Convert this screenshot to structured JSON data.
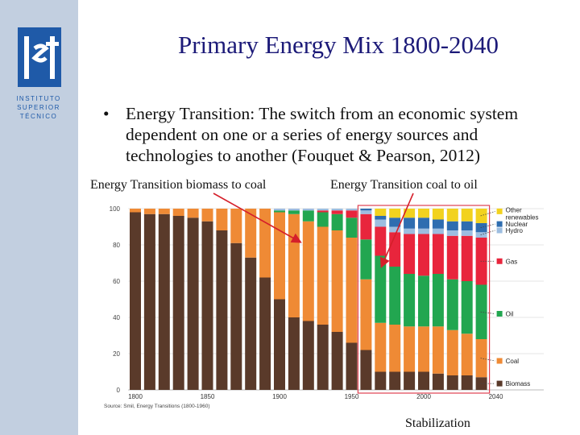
{
  "slide": {
    "title": "Primary Energy Mix 1800-2040",
    "bullet_symbol": "•",
    "bullet_text": "Energy Transition: The switch from an economic system dependent on one or a series of energy sources and technologies to another (Fouquet & Pearson, 2012)",
    "annotation_left": "Energy Transition biomass to coal",
    "annotation_right": "Energy Transition coal to oil",
    "annotation_bottom": "Stabilization"
  },
  "logo": {
    "lines": [
      "INSTITUTO",
      "SUPERIOR",
      "TÉCNICO"
    ],
    "mark_text": "ist"
  },
  "colors": {
    "sidebar": "#c2cfe0",
    "logo_blue": "#1f5aa8",
    "title": "#1c1a78",
    "arrow": "#d51f2a",
    "highlight_box": "#e04050"
  },
  "chart_data": {
    "type": "bar",
    "stacked": true,
    "source": "Source: Smil, Energy Transitions (1800-1960)",
    "ylim": [
      0,
      100
    ],
    "yticks": [
      0,
      20,
      40,
      60,
      80,
      100
    ],
    "xtick_labels": [
      "1800",
      "1850",
      "1900",
      "1950",
      "2000",
      "2040"
    ],
    "categories": [
      1800,
      1810,
      1820,
      1830,
      1840,
      1850,
      1860,
      1870,
      1880,
      1890,
      1900,
      1910,
      1920,
      1930,
      1940,
      1950,
      1960,
      1970,
      1980,
      1990,
      2000,
      2010,
      2020,
      2030,
      2040
    ],
    "series": [
      {
        "name": "Biomass",
        "color": "#5a3a2a",
        "values": [
          98,
          97,
          97,
          96,
          95,
          93,
          88,
          81,
          73,
          62,
          50,
          40,
          38,
          36,
          32,
          26,
          22,
          10,
          10,
          10,
          10,
          9,
          8,
          8,
          7
        ]
      },
      {
        "name": "Coal",
        "color": "#ef8a35",
        "values": [
          2,
          3,
          3,
          4,
          5,
          7,
          12,
          19,
          27,
          38,
          48,
          57,
          55,
          54,
          56,
          58,
          39,
          27,
          26,
          25,
          25,
          26,
          25,
          23,
          21
        ]
      },
      {
        "name": "Oil",
        "color": "#22a650",
        "values": [
          0,
          0,
          0,
          0,
          0,
          0,
          0,
          0,
          0,
          0,
          1,
          2,
          6,
          8,
          9,
          11,
          22,
          37,
          32,
          29,
          28,
          29,
          28,
          29,
          30
        ]
      },
      {
        "name": "Gas",
        "color": "#e8253c",
        "values": [
          0,
          0,
          0,
          0,
          0,
          0,
          0,
          0,
          0,
          0,
          0,
          0,
          0,
          1,
          2,
          4,
          14,
          16,
          19,
          22,
          23,
          22,
          24,
          25,
          26
        ]
      },
      {
        "name": "Hydro",
        "color": "#9dbde0",
        "values": [
          0,
          0,
          0,
          0,
          0,
          0,
          0,
          0,
          0,
          0,
          1,
          1,
          1,
          1,
          1,
          1,
          2,
          4,
          3,
          3,
          3,
          3,
          3,
          3,
          3
        ]
      },
      {
        "name": "Nuclear",
        "color": "#2f6db0",
        "values": [
          0,
          0,
          0,
          0,
          0,
          0,
          0,
          0,
          0,
          0,
          0,
          0,
          0,
          0,
          0,
          0,
          1,
          2,
          5,
          6,
          6,
          5,
          5,
          5,
          5
        ]
      },
      {
        "name": "Other renewables",
        "color": "#f2d21f",
        "values": [
          0,
          0,
          0,
          0,
          0,
          0,
          0,
          0,
          0,
          0,
          0,
          0,
          0,
          0,
          0,
          0,
          0,
          4,
          5,
          5,
          5,
          6,
          7,
          7,
          8
        ]
      }
    ],
    "legend_labels": [
      "Other renewables",
      "Nuclear",
      "Hydro",
      "Gas",
      "Oil",
      "Coal",
      "Biomass"
    ]
  }
}
